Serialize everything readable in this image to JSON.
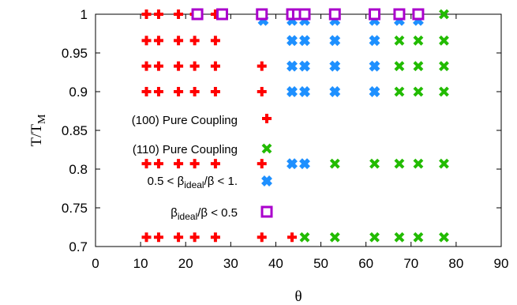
{
  "chart_data": {
    "type": "scatter",
    "xlabel": "θ",
    "ylabel": "T/T",
    "ylabel_sub": "M",
    "xlim": [
      0,
      90
    ],
    "ylim": [
      0.7,
      1.0
    ],
    "xticks": [
      "0",
      "10",
      "20",
      "30",
      "40",
      "50",
      "60",
      "70",
      "80",
      "90"
    ],
    "yticks": [
      "0.7",
      "0.75",
      "0.8",
      "0.85",
      "0.9",
      "0.95",
      "1"
    ],
    "grid": false,
    "legend_placement": "inside-left",
    "series": [
      {
        "label": "(100) Pure Coupling",
        "label_parts": [
          "(100) Pure Coupling"
        ],
        "marker": "plus",
        "color": "#ff0000",
        "points": [
          [
            11.3,
            1
          ],
          [
            14,
            1
          ],
          [
            18.4,
            1
          ],
          [
            22,
            1
          ],
          [
            26.6,
            1
          ],
          [
            36.9,
            1
          ],
          [
            43.6,
            1
          ],
          [
            53.1,
            1
          ],
          [
            61.9,
            1
          ],
          [
            71.6,
            1
          ],
          [
            11.3,
            0.966
          ],
          [
            14,
            0.966
          ],
          [
            18.4,
            0.966
          ],
          [
            22,
            0.966
          ],
          [
            26.6,
            0.966
          ],
          [
            11.3,
            0.933
          ],
          [
            14,
            0.933
          ],
          [
            18.4,
            0.933
          ],
          [
            22,
            0.933
          ],
          [
            26.6,
            0.933
          ],
          [
            36.9,
            0.933
          ],
          [
            11.3,
            0.9
          ],
          [
            14,
            0.9
          ],
          [
            18.4,
            0.9
          ],
          [
            22,
            0.9
          ],
          [
            26.6,
            0.9
          ],
          [
            36.9,
            0.9
          ],
          [
            11.3,
            0.807
          ],
          [
            14,
            0.807
          ],
          [
            18.4,
            0.807
          ],
          [
            22,
            0.807
          ],
          [
            26.6,
            0.807
          ],
          [
            36.9,
            0.807
          ],
          [
            11.3,
            0.712
          ],
          [
            14,
            0.712
          ],
          [
            18.4,
            0.712
          ],
          [
            22,
            0.712
          ],
          [
            26.6,
            0.712
          ],
          [
            36.9,
            0.712
          ],
          [
            43.6,
            0.712
          ]
        ]
      },
      {
        "label": "(110) Pure Coupling",
        "label_parts": [
          "(110) Pure Coupling"
        ],
        "marker": "cross",
        "color": "#22bb00",
        "points": [
          [
            77.3,
            1
          ],
          [
            67.4,
            0.966
          ],
          [
            71.6,
            0.966
          ],
          [
            77.3,
            0.966
          ],
          [
            67.4,
            0.933
          ],
          [
            71.6,
            0.933
          ],
          [
            77.3,
            0.933
          ],
          [
            67.4,
            0.9
          ],
          [
            71.6,
            0.9
          ],
          [
            77.3,
            0.9
          ],
          [
            53.1,
            0.807
          ],
          [
            61.9,
            0.807
          ],
          [
            67.4,
            0.807
          ],
          [
            71.6,
            0.807
          ],
          [
            77.3,
            0.807
          ],
          [
            46.4,
            0.712
          ],
          [
            53.1,
            0.712
          ],
          [
            61.9,
            0.712
          ],
          [
            67.4,
            0.712
          ],
          [
            71.6,
            0.712
          ],
          [
            77.3,
            0.712
          ]
        ]
      },
      {
        "label": "0.5 < βideal/β < 1.",
        "label_parts": [
          "0.5 < β",
          "ideal",
          "/β < 1."
        ],
        "marker": "cross-bold",
        "color": "#1e90ff",
        "points": [
          [
            37.2,
            0.992
          ],
          [
            43.6,
            0.992
          ],
          [
            46.4,
            0.992
          ],
          [
            53.1,
            0.992
          ],
          [
            61.9,
            0.992
          ],
          [
            67.4,
            0.992
          ],
          [
            71.6,
            0.992
          ],
          [
            43.6,
            0.966
          ],
          [
            46.4,
            0.966
          ],
          [
            53.1,
            0.966
          ],
          [
            61.9,
            0.966
          ],
          [
            43.6,
            0.933
          ],
          [
            46.4,
            0.933
          ],
          [
            53.1,
            0.933
          ],
          [
            61.9,
            0.933
          ],
          [
            43.6,
            0.9
          ],
          [
            46.4,
            0.9
          ],
          [
            53.1,
            0.9
          ],
          [
            61.9,
            0.9
          ],
          [
            43.6,
            0.807
          ],
          [
            46.4,
            0.807
          ]
        ]
      },
      {
        "label": "βideal/β < 0.5",
        "label_parts": [
          "β",
          "ideal",
          "/β < 0.5"
        ],
        "marker": "square",
        "color": "#aa00cc",
        "points": [
          [
            22.6,
            1
          ],
          [
            28.1,
            1
          ],
          [
            36.9,
            1
          ],
          [
            43.6,
            1
          ],
          [
            44.9,
            1
          ],
          [
            46.4,
            1
          ],
          [
            53.1,
            1
          ],
          [
            61.9,
            1
          ],
          [
            67.4,
            1
          ],
          [
            71.6,
            1
          ]
        ]
      }
    ]
  }
}
